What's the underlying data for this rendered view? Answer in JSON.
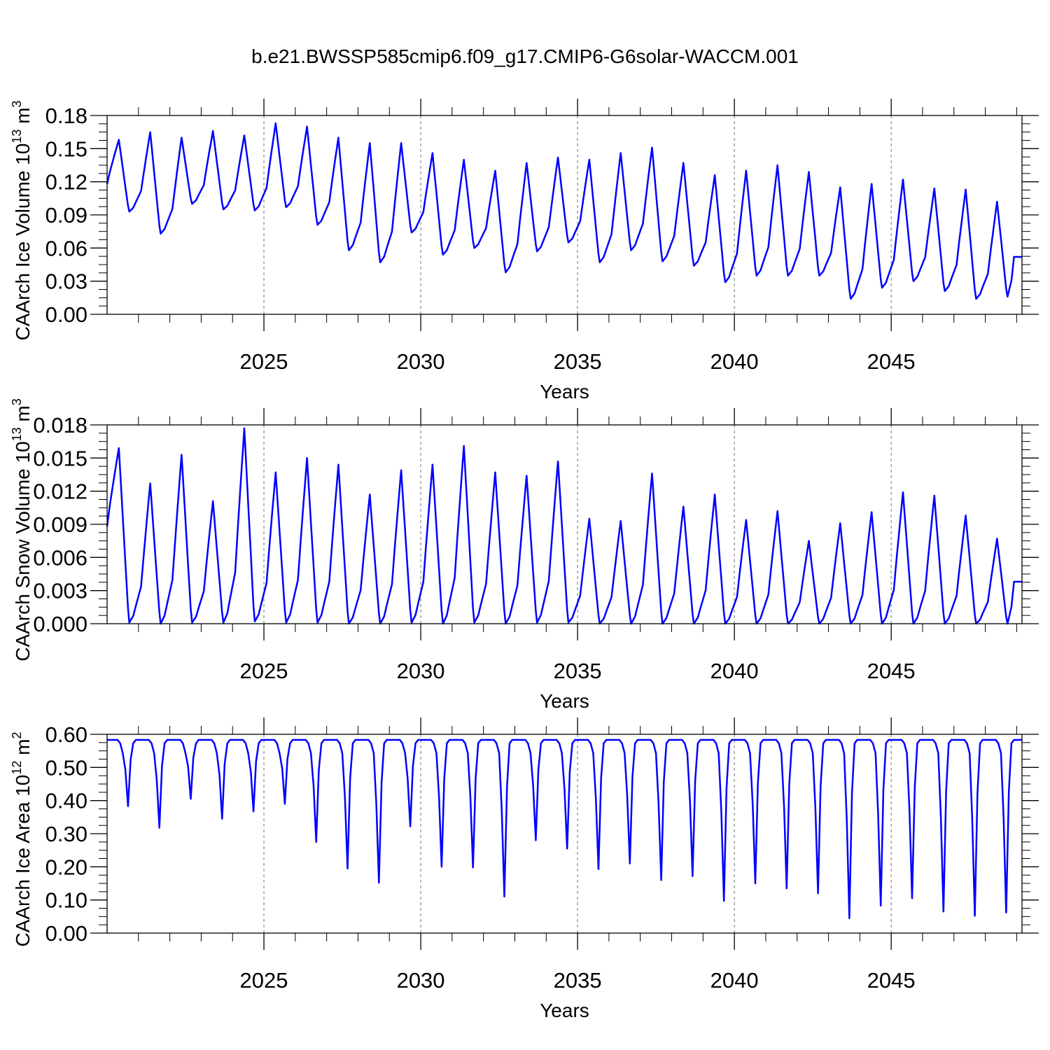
{
  "title": "b.e21.BWSSP585cmip6.f09_g17.CMIP6-G6solar-WACCM.001",
  "line_color": "#0000ff",
  "chart_data": [
    {
      "type": "line",
      "ylabel": "CAArch Ice Volume 10",
      "ylabel_exp": "13",
      "ylabel_unit": "m",
      "ylabel_unit_exp": "3",
      "xlabel": "Years",
      "xlim": [
        2020.0,
        2049.17
      ],
      "ylim": [
        0,
        0.18
      ],
      "yticks": [
        "0.00",
        "0.03",
        "0.06",
        "0.09",
        "0.12",
        "0.15",
        "0.18"
      ],
      "xticks": [
        "2025",
        "2030",
        "2035",
        "2040",
        "2045"
      ],
      "vertical_gridlines_dashed": true,
      "max": [
        0.158,
        0.165,
        0.16,
        0.166,
        0.162,
        0.173,
        0.17,
        0.16,
        0.155,
        0.155,
        0.146,
        0.14,
        0.13,
        0.137,
        0.142,
        0.14,
        0.146,
        0.151,
        0.137,
        0.126,
        0.13,
        0.135,
        0.129,
        0.115,
        0.118,
        0.122,
        0.114,
        0.113,
        0.102
      ],
      "min": [
        0.093,
        0.073,
        0.1,
        0.095,
        0.094,
        0.097,
        0.081,
        0.058,
        0.047,
        0.074,
        0.054,
        0.06,
        0.038,
        0.057,
        0.065,
        0.047,
        0.058,
        0.048,
        0.044,
        0.029,
        0.035,
        0.035,
        0.035,
        0.014,
        0.024,
        0.03,
        0.021,
        0.014,
        0.016
      ],
      "start": 0.118,
      "end": 0.052
    },
    {
      "type": "line",
      "ylabel": "CAArch Snow Volume 10",
      "ylabel_exp": "13",
      "ylabel_unit": "m",
      "ylabel_unit_exp": "3",
      "xlabel": "Years",
      "xlim": [
        2020.0,
        2049.17
      ],
      "ylim": [
        0,
        0.018
      ],
      "yticks": [
        "0.000",
        "0.003",
        "0.006",
        "0.009",
        "0.012",
        "0.015",
        "0.018"
      ],
      "xticks": [
        "2025",
        "2030",
        "2035",
        "2040",
        "2045"
      ],
      "vertical_gridlines_dashed": true,
      "max": [
        0.0159,
        0.0127,
        0.0153,
        0.0111,
        0.0177,
        0.0137,
        0.015,
        0.0144,
        0.0117,
        0.0139,
        0.0144,
        0.0161,
        0.0137,
        0.0134,
        0.0147,
        0.0095,
        0.0093,
        0.0136,
        0.0106,
        0.0117,
        0.0094,
        0.0102,
        0.0075,
        0.0091,
        0.0101,
        0.0119,
        0.0116,
        0.0098,
        0.0077
      ],
      "min": [
        0.0001,
        0.0,
        0.0001,
        0.0001,
        0.0002,
        0.0001,
        0.0001,
        0.0,
        0.0,
        0.0001,
        0.0,
        0.0001,
        0.0,
        0.0001,
        0.0001,
        0.0,
        0.0,
        0.0,
        0.0,
        0.0,
        0.0,
        0.0,
        0.0,
        0.0,
        0.0,
        0.0,
        0.0,
        0.0,
        0.0
      ],
      "start": 0.0088,
      "end": 0.0038
    },
    {
      "type": "line",
      "ylabel": "CAArch Ice Area 10",
      "ylabel_exp": "12",
      "ylabel_unit": "m",
      "ylabel_unit_exp": "2",
      "xlabel": "Years",
      "xlim": [
        2020.0,
        2049.17
      ],
      "ylim": [
        0,
        0.6
      ],
      "yticks": [
        "0.00",
        "0.10",
        "0.20",
        "0.30",
        "0.40",
        "0.50",
        "0.60"
      ],
      "xticks": [
        "2025",
        "2030",
        "2035",
        "2040",
        "2045"
      ],
      "vertical_gridlines_dashed": true,
      "plateau": 0.583,
      "min": [
        0.383,
        0.318,
        0.405,
        0.345,
        0.367,
        0.39,
        0.275,
        0.195,
        0.152,
        0.322,
        0.2,
        0.198,
        0.11,
        0.28,
        0.255,
        0.193,
        0.21,
        0.16,
        0.172,
        0.097,
        0.15,
        0.135,
        0.12,
        0.045,
        0.083,
        0.105,
        0.065,
        0.052,
        0.062
      ],
      "start": 0.583,
      "end": 0.583
    }
  ]
}
